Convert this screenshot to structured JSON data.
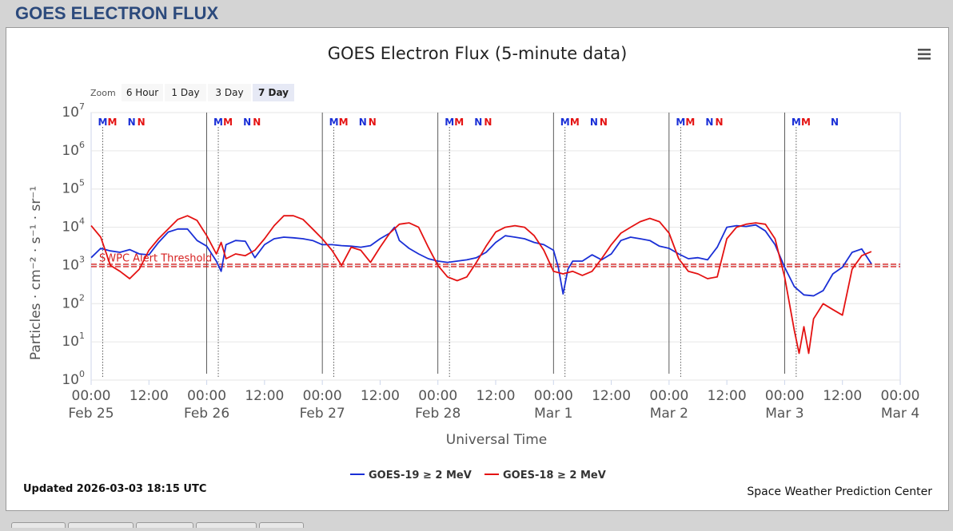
{
  "page": {
    "header": "GOES ELECTRON FLUX"
  },
  "zoom": {
    "label": "Zoom",
    "buttons": [
      {
        "label": "6 Hour",
        "active": false
      },
      {
        "label": "1 Day",
        "active": false
      },
      {
        "label": "3 Day",
        "active": false
      },
      {
        "label": "7 Day",
        "active": true
      }
    ]
  },
  "footer": {
    "updated": "Updated 2026-03-03 18:15 UTC",
    "credit": "Space Weather Prediction Center"
  },
  "colors": {
    "goes19": "#1a2fd6",
    "goes18": "#e41212",
    "threshold": "#d62020",
    "header": "#2c4a7c"
  },
  "chart_data": {
    "type": "line",
    "title": "GOES Electron Flux (5-minute data)",
    "xlabel": "Universal Time",
    "ylabel": "Particles · cm⁻² · s⁻¹ · sr⁻¹",
    "yscale": "log",
    "ylim": [
      1,
      10000000
    ],
    "xlim_hours": [
      0,
      168
    ],
    "x_ticks": [
      {
        "time": "00:00",
        "date": "Feb 25"
      },
      {
        "time": "12:00",
        "date": ""
      },
      {
        "time": "00:00",
        "date": "Feb 26"
      },
      {
        "time": "12:00",
        "date": ""
      },
      {
        "time": "00:00",
        "date": "Feb 27"
      },
      {
        "time": "12:00",
        "date": ""
      },
      {
        "time": "00:00",
        "date": "Feb 28"
      },
      {
        "time": "12:00",
        "date": ""
      },
      {
        "time": "00:00",
        "date": "Mar 1"
      },
      {
        "time": "12:00",
        "date": ""
      },
      {
        "time": "00:00",
        "date": "Mar 2"
      },
      {
        "time": "12:00",
        "date": ""
      },
      {
        "time": "00:00",
        "date": "Mar 3"
      },
      {
        "time": "12:00",
        "date": ""
      },
      {
        "time": "00:00",
        "date": "Mar 4"
      }
    ],
    "y_ticks": [
      {
        "base": "10",
        "exp": "0",
        "value": 1
      },
      {
        "base": "10",
        "exp": "1",
        "value": 10
      },
      {
        "base": "10",
        "exp": "2",
        "value": 100
      },
      {
        "base": "10",
        "exp": "3",
        "value": 1000
      },
      {
        "base": "10",
        "exp": "4",
        "value": 10000
      },
      {
        "base": "10",
        "exp": "5",
        "value": 100000
      },
      {
        "base": "10",
        "exp": "6",
        "value": 1000000
      },
      {
        "base": "10",
        "exp": "7",
        "value": 10000000
      }
    ],
    "threshold": {
      "label": "SWPC Alert Threshold",
      "value": 1000
    },
    "legend": {
      "position": "bottom-center"
    },
    "markers": [
      {
        "label": "M",
        "hour": 2.4,
        "color": "blue"
      },
      {
        "label": "M",
        "hour": 4.4,
        "color": "red"
      },
      {
        "label": "N",
        "hour": 8.4,
        "color": "blue"
      },
      {
        "label": "N",
        "hour": 10.4,
        "color": "red"
      },
      {
        "label": "M",
        "hour": 26.4,
        "color": "blue"
      },
      {
        "label": "M",
        "hour": 28.4,
        "color": "red"
      },
      {
        "label": "N",
        "hour": 32.4,
        "color": "blue"
      },
      {
        "label": "N",
        "hour": 34.4,
        "color": "red"
      },
      {
        "label": "M",
        "hour": 50.4,
        "color": "blue"
      },
      {
        "label": "M",
        "hour": 52.4,
        "color": "red"
      },
      {
        "label": "N",
        "hour": 56.4,
        "color": "blue"
      },
      {
        "label": "N",
        "hour": 58.4,
        "color": "red"
      },
      {
        "label": "M",
        "hour": 74.4,
        "color": "blue"
      },
      {
        "label": "M",
        "hour": 76.4,
        "color": "red"
      },
      {
        "label": "N",
        "hour": 80.4,
        "color": "blue"
      },
      {
        "label": "N",
        "hour": 82.4,
        "color": "red"
      },
      {
        "label": "M",
        "hour": 98.4,
        "color": "blue"
      },
      {
        "label": "M",
        "hour": 100.4,
        "color": "red"
      },
      {
        "label": "N",
        "hour": 104.4,
        "color": "blue"
      },
      {
        "label": "N",
        "hour": 106.4,
        "color": "red"
      },
      {
        "label": "M",
        "hour": 122.4,
        "color": "blue"
      },
      {
        "label": "M",
        "hour": 124.4,
        "color": "red"
      },
      {
        "label": "N",
        "hour": 128.4,
        "color": "blue"
      },
      {
        "label": "N",
        "hour": 130.4,
        "color": "red"
      },
      {
        "label": "M",
        "hour": 146.4,
        "color": "blue"
      },
      {
        "label": "M",
        "hour": 148.4,
        "color": "red"
      },
      {
        "label": "N",
        "hour": 154.4,
        "color": "blue"
      }
    ],
    "series": [
      {
        "name": "GOES-19 ≥ 2 MeV",
        "color": "#1a2fd6",
        "points": [
          [
            0,
            1600
          ],
          [
            2,
            2800
          ],
          [
            4,
            2400
          ],
          [
            6,
            2200
          ],
          [
            8,
            2600
          ],
          [
            10,
            2000
          ],
          [
            12,
            1900
          ],
          [
            14,
            4000
          ],
          [
            16,
            7500
          ],
          [
            18,
            9000
          ],
          [
            20,
            9000
          ],
          [
            22,
            4500
          ],
          [
            24,
            3200
          ],
          [
            26,
            1300
          ],
          [
            27,
            700
          ],
          [
            28,
            3500
          ],
          [
            30,
            4500
          ],
          [
            32,
            4300
          ],
          [
            34,
            1600
          ],
          [
            36,
            3500
          ],
          [
            38,
            5000
          ],
          [
            40,
            5500
          ],
          [
            42,
            5300
          ],
          [
            44,
            5000
          ],
          [
            46,
            4500
          ],
          [
            48,
            3500
          ],
          [
            50,
            3500
          ],
          [
            52,
            3300
          ],
          [
            54,
            3200
          ],
          [
            56,
            3000
          ],
          [
            58,
            3300
          ],
          [
            60,
            5000
          ],
          [
            62,
            7000
          ],
          [
            63,
            10000
          ],
          [
            64,
            4500
          ],
          [
            66,
            2800
          ],
          [
            68,
            2000
          ],
          [
            70,
            1500
          ],
          [
            72,
            1300
          ],
          [
            74,
            1200
          ],
          [
            76,
            1300
          ],
          [
            78,
            1400
          ],
          [
            80,
            1600
          ],
          [
            82,
            2200
          ],
          [
            84,
            4000
          ],
          [
            86,
            6000
          ],
          [
            88,
            5500
          ],
          [
            90,
            5000
          ],
          [
            92,
            4000
          ],
          [
            94,
            3500
          ],
          [
            96,
            2500
          ],
          [
            97,
            900
          ],
          [
            98,
            180
          ],
          [
            99,
            800
          ],
          [
            100,
            1300
          ],
          [
            102,
            1300
          ],
          [
            104,
            1900
          ],
          [
            106,
            1400
          ],
          [
            108,
            2000
          ],
          [
            110,
            4500
          ],
          [
            112,
            5500
          ],
          [
            114,
            5000
          ],
          [
            116,
            4500
          ],
          [
            118,
            3200
          ],
          [
            120,
            2800
          ],
          [
            122,
            2000
          ],
          [
            124,
            1500
          ],
          [
            126,
            1600
          ],
          [
            128,
            1400
          ],
          [
            130,
            3000
          ],
          [
            132,
            10000
          ],
          [
            134,
            11000
          ],
          [
            136,
            10500
          ],
          [
            138,
            11500
          ],
          [
            140,
            8000
          ],
          [
            142,
            3500
          ],
          [
            144,
            900
          ],
          [
            146,
            280
          ],
          [
            148,
            170
          ],
          [
            150,
            160
          ],
          [
            152,
            220
          ],
          [
            154,
            600
          ],
          [
            156,
            900
          ],
          [
            158,
            2200
          ],
          [
            160,
            2700
          ],
          [
            162,
            1100
          ]
        ]
      },
      {
        "name": "GOES-18 ≥ 2 MeV",
        "color": "#e41212",
        "points": [
          [
            0,
            11000
          ],
          [
            2,
            5500
          ],
          [
            4,
            1000
          ],
          [
            6,
            700
          ],
          [
            8,
            450
          ],
          [
            10,
            800
          ],
          [
            12,
            2500
          ],
          [
            14,
            5000
          ],
          [
            16,
            9000
          ],
          [
            18,
            16000
          ],
          [
            20,
            20000
          ],
          [
            22,
            15000
          ],
          [
            24,
            6000
          ],
          [
            26,
            2000
          ],
          [
            27,
            4000
          ],
          [
            28,
            1500
          ],
          [
            30,
            2000
          ],
          [
            32,
            1800
          ],
          [
            34,
            2500
          ],
          [
            36,
            5000
          ],
          [
            38,
            11000
          ],
          [
            40,
            20000
          ],
          [
            42,
            20000
          ],
          [
            44,
            16000
          ],
          [
            46,
            9000
          ],
          [
            48,
            5000
          ],
          [
            50,
            2500
          ],
          [
            52,
            1000
          ],
          [
            54,
            3000
          ],
          [
            56,
            2500
          ],
          [
            58,
            1200
          ],
          [
            60,
            3000
          ],
          [
            62,
            7000
          ],
          [
            64,
            12000
          ],
          [
            66,
            13000
          ],
          [
            68,
            10000
          ],
          [
            70,
            3000
          ],
          [
            72,
            1000
          ],
          [
            74,
            500
          ],
          [
            76,
            400
          ],
          [
            78,
            500
          ],
          [
            80,
            1200
          ],
          [
            82,
            3200
          ],
          [
            84,
            7500
          ],
          [
            86,
            10000
          ],
          [
            88,
            11000
          ],
          [
            90,
            10000
          ],
          [
            92,
            6000
          ],
          [
            94,
            2500
          ],
          [
            96,
            700
          ],
          [
            98,
            600
          ],
          [
            100,
            700
          ],
          [
            102,
            550
          ],
          [
            104,
            700
          ],
          [
            106,
            1500
          ],
          [
            108,
            3500
          ],
          [
            110,
            7000
          ],
          [
            112,
            10000
          ],
          [
            114,
            14000
          ],
          [
            116,
            17000
          ],
          [
            118,
            14000
          ],
          [
            120,
            7000
          ],
          [
            122,
            1500
          ],
          [
            124,
            700
          ],
          [
            126,
            600
          ],
          [
            128,
            450
          ],
          [
            130,
            500
          ],
          [
            132,
            5000
          ],
          [
            134,
            10000
          ],
          [
            136,
            12000
          ],
          [
            138,
            13000
          ],
          [
            140,
            12000
          ],
          [
            142,
            5000
          ],
          [
            144,
            500
          ],
          [
            146,
            20
          ],
          [
            147,
            5
          ],
          [
            148,
            25
          ],
          [
            149,
            5
          ],
          [
            150,
            40
          ],
          [
            152,
            100
          ],
          [
            154,
            70
          ],
          [
            156,
            50
          ],
          [
            158,
            800
          ],
          [
            160,
            1800
          ],
          [
            162,
            2300
          ]
        ]
      }
    ]
  }
}
